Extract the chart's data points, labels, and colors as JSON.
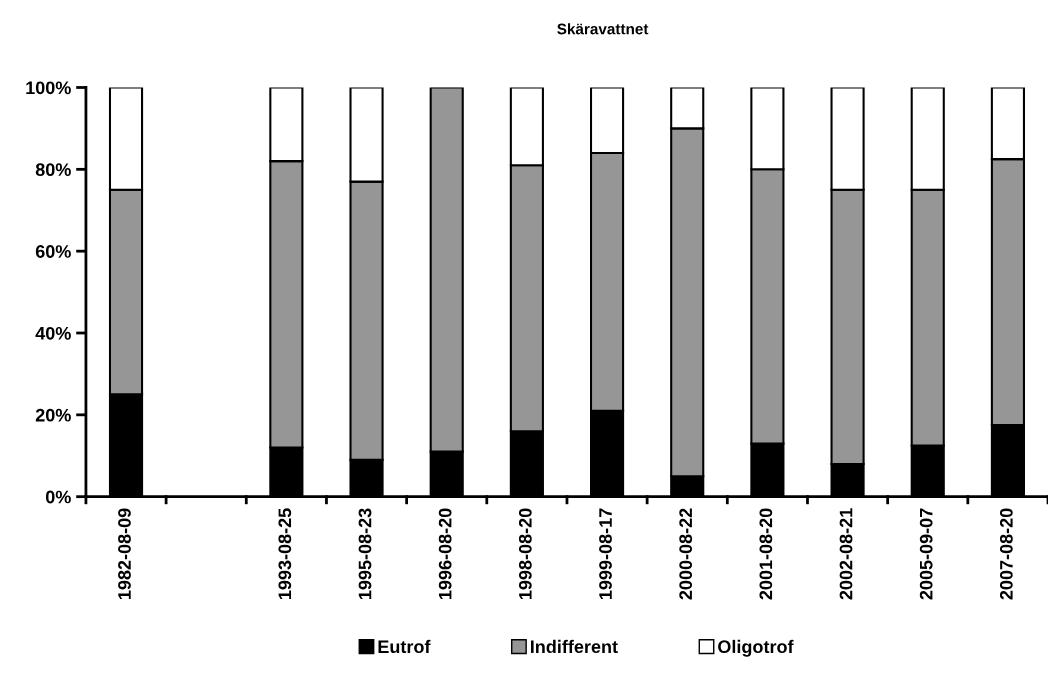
{
  "chart_data": {
    "type": "bar",
    "title": "Skäravattnet",
    "stacked": true,
    "categories": [
      "1982-08-09",
      null,
      "1993-08-25",
      "1995-08-23",
      "1996-08-20",
      "1998-08-20",
      "1999-08-17",
      "2000-08-22",
      "2001-08-20",
      "2002-08-21",
      "2005-09-07",
      "2007-08-20"
    ],
    "series": [
      {
        "name": "Eutrof",
        "color": "#000000",
        "values": [
          25,
          null,
          12,
          9,
          11,
          16,
          21,
          5,
          13,
          8,
          12.5,
          17.5
        ]
      },
      {
        "name": "Indifferent",
        "color": "#969696",
        "values": [
          50,
          null,
          70,
          68,
          89,
          65,
          63,
          85,
          67,
          67,
          62.5,
          65
        ]
      },
      {
        "name": "Oligotrof",
        "color": "#ffffff",
        "values": [
          25,
          null,
          18,
          23,
          0,
          19,
          16,
          10,
          20,
          25,
          25,
          17.5
        ]
      }
    ],
    "ylim": [
      0,
      100
    ],
    "yticks": [
      {
        "value": 0,
        "label": "0%"
      },
      {
        "value": 20,
        "label": "20%"
      },
      {
        "value": 40,
        "label": "40%"
      },
      {
        "value": 60,
        "label": "60%"
      },
      {
        "value": 80,
        "label": "80%"
      },
      {
        "value": 100,
        "label": "100%"
      }
    ],
    "grid": false,
    "legend": "bottom"
  }
}
